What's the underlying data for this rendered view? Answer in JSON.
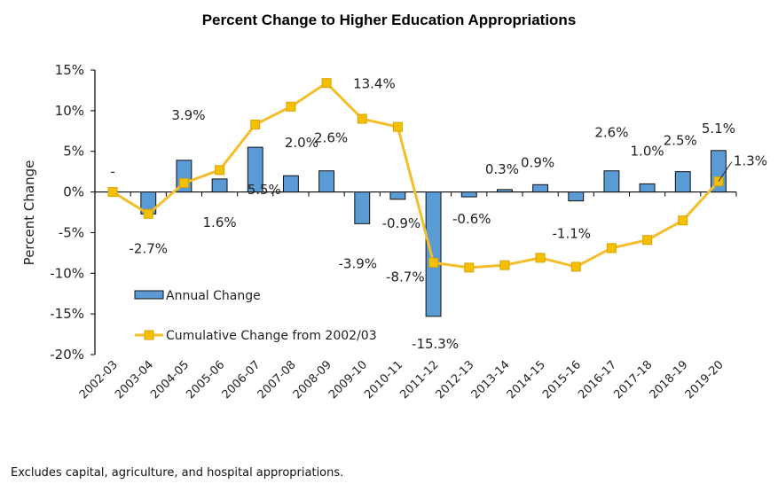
{
  "chart_data": {
    "type": "bar",
    "title": "Percent Change to Higher Education Appropriations",
    "xlabel": "",
    "ylabel": "Percent Change",
    "ylim": [
      -20,
      15
    ],
    "yticks": [
      15,
      10,
      5,
      0,
      -5,
      -10,
      -15,
      -20
    ],
    "ytick_labels": [
      "15%",
      "10%",
      "5%",
      "0%",
      "-5%",
      "-10%",
      "-15%",
      "-20%"
    ],
    "grid": false,
    "legend_position": "lower-left",
    "categories": [
      "2002-03",
      "2003-04",
      "2004-05",
      "2005-06",
      "2006-07",
      "2007-08",
      "2008-09",
      "2009-10",
      "2010-11",
      "2011-12",
      "2012-13",
      "2013-14",
      "2014-15",
      "2015-16",
      "2016-17",
      "2017-18",
      "2018-19",
      "2019-20"
    ],
    "series": [
      {
        "name": "Annual Change",
        "type": "bar",
        "color": "#5B9BD5",
        "values": [
          0,
          -2.7,
          3.9,
          1.6,
          5.5,
          2.0,
          2.6,
          -3.9,
          -0.9,
          -15.3,
          -0.6,
          0.3,
          0.9,
          -1.1,
          2.6,
          1.0,
          2.5,
          5.1
        ],
        "labels": [
          "-",
          "-2.7%",
          "3.9%",
          "1.6%",
          "5.5%",
          "2.0%",
          "2.6%",
          "-3.9%",
          "-0.9%",
          "-15.3%",
          "-0.6%",
          "0.3%",
          "0.9%",
          "-1.1%",
          "2.6%",
          "1.0%",
          "2.5%",
          "5.1%"
        ]
      },
      {
        "name": "Cumulative Change from 2002/03",
        "type": "line",
        "color": "#F4BE2A",
        "values": [
          0,
          -2.7,
          1.1,
          2.7,
          8.3,
          10.5,
          13.4,
          9.0,
          8.0,
          -8.7,
          -9.3,
          -9.0,
          -8.1,
          -9.2,
          -6.9,
          -5.9,
          -3.5,
          1.3
        ],
        "labels": {
          "6": "13.4%",
          "9": "-8.7%",
          "17": "1.3%"
        }
      }
    ]
  },
  "footnote": "Excludes capital, agriculture, and hospital appropriations."
}
